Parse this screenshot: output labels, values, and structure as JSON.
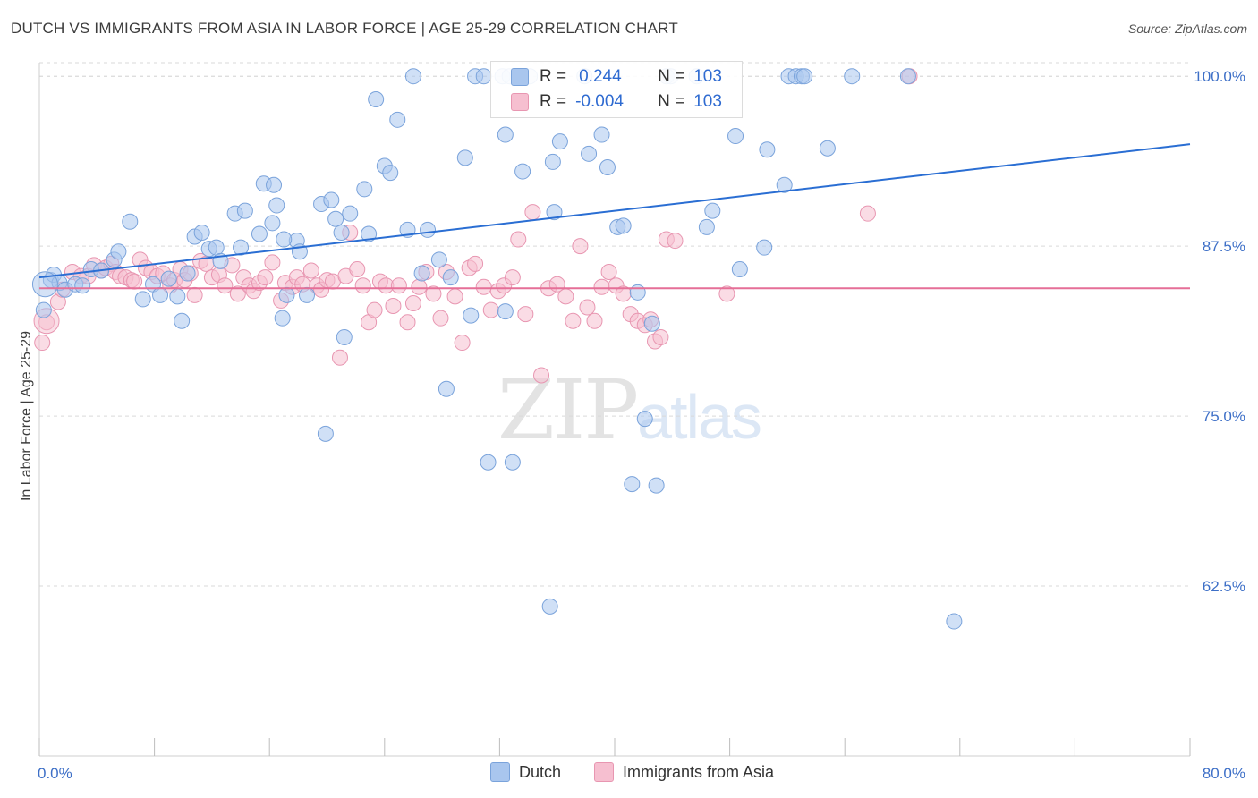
{
  "header": {
    "title": "DUTCH VS IMMIGRANTS FROM ASIA IN LABOR FORCE | AGE 25-29 CORRELATION CHART",
    "source": "Source: ZipAtlas.com"
  },
  "watermark": {
    "zip": "ZIP",
    "atlas": "atlas"
  },
  "stats_legend": {
    "dutch": {
      "r_label": "R =",
      "r_value": "0.244",
      "n_label": "N =",
      "n_value": "103"
    },
    "asia": {
      "r_label": "R =",
      "r_value": "-0.004",
      "n_label": "N =",
      "n_value": "103"
    }
  },
  "colors": {
    "dutch_fill": "#a9c6ee",
    "dutch_stroke": "#7aa3db",
    "dutch_line": "#2a6ed3",
    "asia_fill": "#f6bfd0",
    "asia_stroke": "#e896b1",
    "asia_line": "#e56f97",
    "grid": "#d9d9d9",
    "tick_label": "#3d6fc7"
  },
  "chart_data": {
    "type": "scatter",
    "title": "DUTCH VS IMMIGRANTS FROM ASIA IN LABOR FORCE | AGE 25-29 CORRELATION CHART",
    "xlabel": "",
    "ylabel": "In Labor Force | Age 25-29",
    "xlim": [
      0,
      80
    ],
    "ylim": [
      50,
      101
    ],
    "x_tick_labels": [
      "0.0%",
      "80.0%"
    ],
    "y_ticks": [
      62.5,
      75.0,
      87.5,
      100.0
    ],
    "y_tick_labels": [
      "62.5%",
      "75.0%",
      "87.5%",
      "100.0%"
    ],
    "grid": true,
    "legend_position": "bottom",
    "series": [
      {
        "name": "Dutch",
        "trend": {
          "x": [
            0,
            80
          ],
          "y": [
            85.2,
            95.0
          ]
        },
        "points": [
          [
            0.3,
            82.8
          ],
          [
            0.8,
            85.0
          ],
          [
            1.0,
            85.4
          ],
          [
            1.4,
            84.8
          ],
          [
            1.8,
            84.3
          ],
          [
            2.5,
            84.7
          ],
          [
            3.0,
            84.6
          ],
          [
            3.6,
            85.8
          ],
          [
            4.3,
            85.7
          ],
          [
            5.2,
            86.5
          ],
          [
            5.5,
            87.1
          ],
          [
            6.3,
            89.3
          ],
          [
            7.2,
            83.6
          ],
          [
            7.9,
            84.7
          ],
          [
            8.4,
            83.9
          ],
          [
            9.0,
            85.1
          ],
          [
            9.6,
            83.8
          ],
          [
            9.9,
            82.0
          ],
          [
            10.3,
            85.5
          ],
          [
            10.8,
            88.2
          ],
          [
            11.3,
            88.5
          ],
          [
            11.8,
            87.3
          ],
          [
            12.3,
            87.4
          ],
          [
            12.6,
            86.4
          ],
          [
            13.6,
            89.9
          ],
          [
            14.0,
            87.4
          ],
          [
            14.3,
            90.1
          ],
          [
            15.3,
            88.4
          ],
          [
            15.6,
            92.1
          ],
          [
            16.2,
            89.2
          ],
          [
            16.5,
            90.5
          ],
          [
            16.9,
            82.2
          ],
          [
            17.2,
            83.9
          ],
          [
            17.9,
            87.9
          ],
          [
            18.1,
            87.1
          ],
          [
            18.6,
            83.9
          ],
          [
            19.6,
            90.6
          ],
          [
            19.9,
            73.7
          ],
          [
            20.3,
            90.9
          ],
          [
            20.6,
            89.5
          ],
          [
            21.2,
            80.8
          ],
          [
            21.6,
            89.9
          ],
          [
            22.6,
            91.7
          ],
          [
            22.9,
            88.4
          ],
          [
            23.4,
            98.3
          ],
          [
            24.0,
            93.4
          ],
          [
            24.4,
            92.9
          ],
          [
            24.9,
            96.8
          ],
          [
            25.6,
            88.7
          ],
          [
            26.0,
            100.0
          ],
          [
            26.6,
            85.5
          ],
          [
            27.0,
            88.7
          ],
          [
            27.8,
            86.5
          ],
          [
            28.3,
            77.0
          ],
          [
            28.6,
            85.2
          ],
          [
            29.6,
            94.0
          ],
          [
            30.0,
            82.4
          ],
          [
            30.3,
            100.0
          ],
          [
            30.9,
            100.0
          ],
          [
            31.2,
            71.6
          ],
          [
            32.2,
            100.0
          ],
          [
            32.4,
            82.7
          ],
          [
            32.7,
            100.0
          ],
          [
            32.4,
            95.7
          ],
          [
            32.9,
            71.6
          ],
          [
            33.6,
            93.0
          ],
          [
            34.1,
            100.0
          ],
          [
            35.5,
            61.0
          ],
          [
            35.7,
            93.7
          ],
          [
            35.8,
            90.0
          ],
          [
            36.2,
            95.2
          ],
          [
            37.9,
            100.0
          ],
          [
            38.2,
            94.3
          ],
          [
            39.1,
            95.7
          ],
          [
            39.5,
            93.3
          ],
          [
            40.2,
            88.9
          ],
          [
            40.6,
            89.0
          ],
          [
            41.2,
            70.0
          ],
          [
            41.6,
            84.1
          ],
          [
            42.1,
            74.8
          ],
          [
            42.6,
            81.8
          ],
          [
            42.9,
            69.9
          ],
          [
            43.6,
            100.0
          ],
          [
            43.9,
            100.0
          ],
          [
            45.7,
            100.0
          ],
          [
            46.4,
            88.9
          ],
          [
            46.8,
            90.1
          ],
          [
            48.4,
            95.6
          ],
          [
            48.7,
            85.8
          ],
          [
            50.4,
            87.4
          ],
          [
            50.6,
            94.6
          ],
          [
            52.1,
            100.0
          ],
          [
            52.6,
            100.0
          ],
          [
            53.0,
            100.0
          ],
          [
            53.2,
            100.0
          ],
          [
            54.8,
            94.7
          ],
          [
            56.5,
            100.0
          ],
          [
            60.4,
            100.0
          ],
          [
            63.6,
            59.9
          ],
          [
            51.8,
            92.0
          ],
          [
            16.3,
            92.0
          ],
          [
            17.0,
            88.0
          ],
          [
            21.0,
            88.5
          ]
        ]
      },
      {
        "name": "Immigrants from Asia",
        "trend": {
          "x": [
            0,
            80
          ],
          "y": [
            84.4,
            84.4
          ]
        },
        "points": [
          [
            0.2,
            80.4
          ],
          [
            0.5,
            81.9
          ],
          [
            1.3,
            83.4
          ],
          [
            1.6,
            84.3
          ],
          [
            2.3,
            85.6
          ],
          [
            2.9,
            85.3
          ],
          [
            3.4,
            85.3
          ],
          [
            3.8,
            86.1
          ],
          [
            4.3,
            85.7
          ],
          [
            4.6,
            85.9
          ],
          [
            5.0,
            86.2
          ],
          [
            5.3,
            85.6
          ],
          [
            5.6,
            85.3
          ],
          [
            6.0,
            85.2
          ],
          [
            6.4,
            85.0
          ],
          [
            6.6,
            84.9
          ],
          [
            7.0,
            86.5
          ],
          [
            7.4,
            85.9
          ],
          [
            7.8,
            85.6
          ],
          [
            8.2,
            85.3
          ],
          [
            8.6,
            85.5
          ],
          [
            9.1,
            84.6
          ],
          [
            9.4,
            85.0
          ],
          [
            9.8,
            85.8
          ],
          [
            10.1,
            85.0
          ],
          [
            10.5,
            85.5
          ],
          [
            10.8,
            83.9
          ],
          [
            11.2,
            86.4
          ],
          [
            11.6,
            86.2
          ],
          [
            12.0,
            85.2
          ],
          [
            12.5,
            85.4
          ],
          [
            12.9,
            84.6
          ],
          [
            13.4,
            86.1
          ],
          [
            13.8,
            84.0
          ],
          [
            14.2,
            85.2
          ],
          [
            14.6,
            84.6
          ],
          [
            14.9,
            84.2
          ],
          [
            15.3,
            84.8
          ],
          [
            15.7,
            85.2
          ],
          [
            16.2,
            86.3
          ],
          [
            16.8,
            83.5
          ],
          [
            17.1,
            84.8
          ],
          [
            17.6,
            84.5
          ],
          [
            17.9,
            85.2
          ],
          [
            18.3,
            84.7
          ],
          [
            18.9,
            85.7
          ],
          [
            19.3,
            84.6
          ],
          [
            19.6,
            84.3
          ],
          [
            20.0,
            85.0
          ],
          [
            20.4,
            84.9
          ],
          [
            20.9,
            79.3
          ],
          [
            21.3,
            85.3
          ],
          [
            21.6,
            88.5
          ],
          [
            22.1,
            85.8
          ],
          [
            22.5,
            84.6
          ],
          [
            22.9,
            81.9
          ],
          [
            23.3,
            82.8
          ],
          [
            23.7,
            84.9
          ],
          [
            24.1,
            84.6
          ],
          [
            24.6,
            83.1
          ],
          [
            25.0,
            84.6
          ],
          [
            25.6,
            81.9
          ],
          [
            26.0,
            83.3
          ],
          [
            26.4,
            84.5
          ],
          [
            26.9,
            85.6
          ],
          [
            27.4,
            84.0
          ],
          [
            27.9,
            82.2
          ],
          [
            28.3,
            85.6
          ],
          [
            28.9,
            83.8
          ],
          [
            29.4,
            80.4
          ],
          [
            29.9,
            85.9
          ],
          [
            30.3,
            86.2
          ],
          [
            30.9,
            84.5
          ],
          [
            31.4,
            82.8
          ],
          [
            31.9,
            84.2
          ],
          [
            32.3,
            84.6
          ],
          [
            32.9,
            85.2
          ],
          [
            33.3,
            88.0
          ],
          [
            33.8,
            82.5
          ],
          [
            34.3,
            90.0
          ],
          [
            34.9,
            78.0
          ],
          [
            35.4,
            84.4
          ],
          [
            36.0,
            84.7
          ],
          [
            36.6,
            83.8
          ],
          [
            37.1,
            82.0
          ],
          [
            37.6,
            87.5
          ],
          [
            38.1,
            83.0
          ],
          [
            38.6,
            82.0
          ],
          [
            39.1,
            84.5
          ],
          [
            39.6,
            85.6
          ],
          [
            40.1,
            84.6
          ],
          [
            40.6,
            84.0
          ],
          [
            41.1,
            82.5
          ],
          [
            41.6,
            82.0
          ],
          [
            42.1,
            81.7
          ],
          [
            42.5,
            82.1
          ],
          [
            42.8,
            80.5
          ],
          [
            43.2,
            80.8
          ],
          [
            43.6,
            88.0
          ],
          [
            44.2,
            87.9
          ],
          [
            47.8,
            84.0
          ],
          [
            57.6,
            89.9
          ],
          [
            60.5,
            100.0
          ]
        ]
      }
    ]
  },
  "legend": {
    "items": [
      {
        "label": "Dutch"
      },
      {
        "label": "Immigrants from Asia"
      }
    ]
  }
}
